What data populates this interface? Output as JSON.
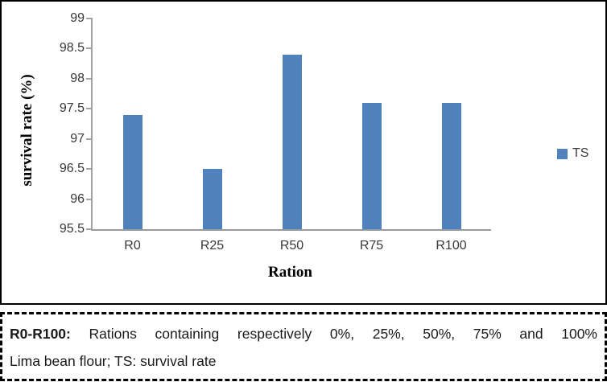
{
  "chart_data": {
    "type": "bar",
    "categories": [
      "R0",
      "R25",
      "R50",
      "R75",
      "R100"
    ],
    "series": [
      {
        "name": "TS",
        "values": [
          97.4,
          96.5,
          98.4,
          97.6,
          97.6
        ]
      }
    ],
    "title": "",
    "xlabel": "Ration",
    "ylabel": "survival rate (%)",
    "ylim": [
      95.5,
      99
    ],
    "yticks": [
      95.5,
      96,
      96.5,
      97,
      97.5,
      98,
      98.5,
      99
    ],
    "grid": false,
    "legend_position": "right",
    "bar_color": "#4f81bd"
  },
  "legend": {
    "label": "TS",
    "swatch_color": "#4f81bd"
  },
  "caption": {
    "prefix": "R0-R100:",
    "line1_rest": "Rations containing respectively 0%, 25%, 50%, 75% and 100%",
    "line2": "Lima bean flour; TS: survival rate"
  }
}
